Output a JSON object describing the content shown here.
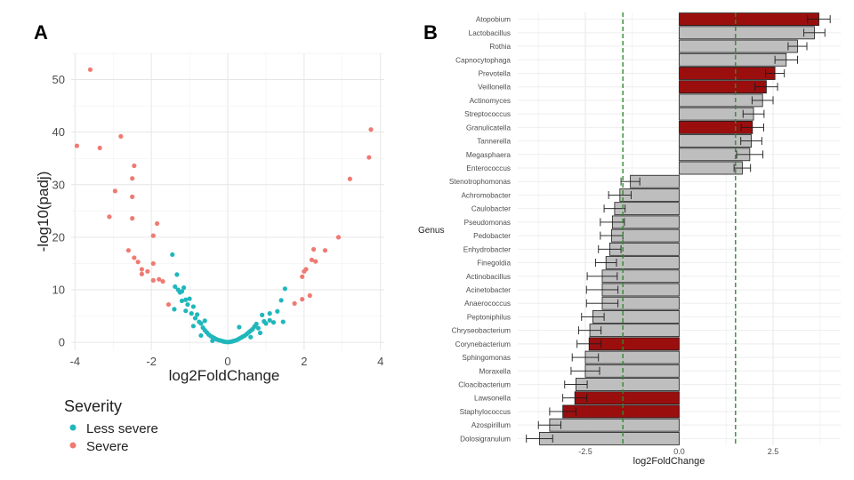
{
  "panels": {
    "a": "A",
    "b": "B"
  },
  "chart_data": [
    {
      "type": "scatter",
      "title": "",
      "xlabel": "log2FoldChange",
      "ylabel": "-log10(padj)",
      "xlim": [
        -4.1,
        4.1
      ],
      "ylim": [
        -1.5,
        55
      ],
      "xticks": [
        -4,
        -2,
        0,
        2,
        4
      ],
      "yticks": [
        0,
        10,
        20,
        30,
        40,
        50
      ],
      "grid": true,
      "legend": {
        "title": "Severity",
        "position": "bottom-left"
      },
      "colors": {
        "Less severe": "#20B7BC",
        "Severe": "#F07A72"
      },
      "series": [
        {
          "name": "Less severe",
          "points": [
            [
              -1.45,
              16.7
            ],
            [
              -1.38,
              10.6
            ],
            [
              -1.33,
              12.9
            ],
            [
              -1.3,
              10.0
            ],
            [
              -1.25,
              9.5
            ],
            [
              -1.2,
              9.7
            ],
            [
              -1.15,
              10.4
            ],
            [
              -1.1,
              8.1
            ],
            [
              -1.05,
              7.2
            ],
            [
              -1.0,
              8.3
            ],
            [
              -0.95,
              5.5
            ],
            [
              -0.9,
              6.8
            ],
            [
              -0.85,
              4.6
            ],
            [
              -0.8,
              5.3
            ],
            [
              -0.75,
              3.9
            ],
            [
              -0.7,
              3.6
            ],
            [
              -0.65,
              2.8
            ],
            [
              -0.6,
              2.3
            ],
            [
              -0.55,
              1.9
            ],
            [
              -0.5,
              1.5
            ],
            [
              -0.45,
              1.2
            ],
            [
              -0.4,
              1.0
            ],
            [
              -0.35,
              0.8
            ],
            [
              -0.3,
              0.6
            ],
            [
              -0.25,
              0.45
            ],
            [
              -0.2,
              0.35
            ],
            [
              -0.15,
              0.25
            ],
            [
              -0.1,
              0.15
            ],
            [
              -0.05,
              0.08
            ],
            [
              0.0,
              0.05
            ],
            [
              0.05,
              0.08
            ],
            [
              0.1,
              0.15
            ],
            [
              0.15,
              0.25
            ],
            [
              0.2,
              0.35
            ],
            [
              0.25,
              0.5
            ],
            [
              0.3,
              0.7
            ],
            [
              0.35,
              0.9
            ],
            [
              0.4,
              1.1
            ],
            [
              0.45,
              1.3
            ],
            [
              0.5,
              1.6
            ],
            [
              0.55,
              1.9
            ],
            [
              0.6,
              2.2
            ],
            [
              0.65,
              2.5
            ],
            [
              0.7,
              3.0
            ],
            [
              0.75,
              3.5
            ],
            [
              0.8,
              2.7
            ],
            [
              0.85,
              1.8
            ],
            [
              0.9,
              5.2
            ],
            [
              0.95,
              4.0
            ],
            [
              1.0,
              3.6
            ],
            [
              1.1,
              5.5
            ],
            [
              1.2,
              3.8
            ],
            [
              1.3,
              5.9
            ],
            [
              1.4,
              8.0
            ],
            [
              1.5,
              10.2
            ],
            [
              1.45,
              3.9
            ],
            [
              1.1,
              4.2
            ],
            [
              -0.6,
              4.1
            ],
            [
              -0.9,
              3.1
            ],
            [
              -1.1,
              6.0
            ],
            [
              -1.4,
              6.3
            ],
            [
              -1.2,
              7.9
            ],
            [
              -0.7,
              1.3
            ],
            [
              -0.4,
              0.3
            ],
            [
              0.3,
              2.9
            ],
            [
              0.6,
              1.0
            ]
          ]
        },
        {
          "name": "Severe",
          "points": [
            [
              -3.6,
              51.9
            ],
            [
              -3.95,
              37.4
            ],
            [
              -3.35,
              37.0
            ],
            [
              -2.8,
              39.2
            ],
            [
              -2.45,
              33.6
            ],
            [
              -2.5,
              31.2
            ],
            [
              -2.95,
              28.8
            ],
            [
              -2.5,
              27.7
            ],
            [
              -3.1,
              23.9
            ],
            [
              -2.5,
              23.6
            ],
            [
              -1.85,
              22.6
            ],
            [
              -1.95,
              20.3
            ],
            [
              -2.6,
              17.5
            ],
            [
              -2.45,
              16.1
            ],
            [
              -2.35,
              15.3
            ],
            [
              -1.95,
              15.0
            ],
            [
              -2.25,
              13.9
            ],
            [
              -2.1,
              13.5
            ],
            [
              -2.25,
              13.0
            ],
            [
              -1.8,
              12.0
            ],
            [
              -1.95,
              11.8
            ],
            [
              -1.7,
              11.6
            ],
            [
              -1.55,
              7.2
            ],
            [
              1.75,
              7.4
            ],
            [
              1.95,
              8.2
            ],
            [
              1.95,
              12.5
            ],
            [
              2.0,
              13.5
            ],
            [
              2.05,
              13.9
            ],
            [
              2.2,
              15.7
            ],
            [
              2.25,
              17.7
            ],
            [
              2.3,
              15.4
            ],
            [
              2.55,
              17.5
            ],
            [
              2.9,
              20.0
            ],
            [
              3.2,
              31.1
            ],
            [
              3.7,
              35.2
            ],
            [
              3.75,
              40.5
            ],
            [
              2.15,
              8.9
            ]
          ]
        }
      ]
    },
    {
      "type": "bar",
      "orientation": "horizontal",
      "title": "",
      "xlabel": "log2FoldChange",
      "ylabel": "Genus",
      "xlim": [
        -4.3,
        4.3
      ],
      "xticks": [
        -2.5,
        0.0,
        2.5
      ],
      "xtick_labels": [
        "-2.5",
        "0.0",
        "2.5"
      ],
      "reference_lines": [
        -1.5,
        1.5
      ],
      "reference_line_color": "#2E8B2E",
      "colors": {
        "highlight": "#9B0E0E",
        "default": "#BEBEBE"
      },
      "grid": true,
      "bars": [
        {
          "genus": "Atopobium",
          "value": 3.72,
          "error": 0.3,
          "highlight": true
        },
        {
          "genus": "Lactobacillus",
          "value": 3.6,
          "error": 0.28,
          "highlight": false
        },
        {
          "genus": "Rothia",
          "value": 3.15,
          "error": 0.25,
          "highlight": false
        },
        {
          "genus": "Capnocytophaga",
          "value": 2.85,
          "error": 0.3,
          "highlight": false
        },
        {
          "genus": "Prevotella",
          "value": 2.55,
          "error": 0.25,
          "highlight": true
        },
        {
          "genus": "Veillonella",
          "value": 2.32,
          "error": 0.3,
          "highlight": true
        },
        {
          "genus": "Actinomyces",
          "value": 2.22,
          "error": 0.28,
          "highlight": false
        },
        {
          "genus": "Streptococcus",
          "value": 1.98,
          "error": 0.28,
          "highlight": false
        },
        {
          "genus": "Granulicatella",
          "value": 1.95,
          "error": 0.3,
          "highlight": true
        },
        {
          "genus": "Tannerella",
          "value": 1.92,
          "error": 0.28,
          "highlight": false
        },
        {
          "genus": "Megasphaera",
          "value": 1.88,
          "error": 0.35,
          "highlight": false
        },
        {
          "genus": "Enterococcus",
          "value": 1.68,
          "error": 0.22,
          "highlight": false
        },
        {
          "genus": "Stenotrophomonas",
          "value": -1.3,
          "error": 0.25,
          "highlight": false
        },
        {
          "genus": "Achromobacter",
          "value": -1.58,
          "error": 0.3,
          "highlight": false
        },
        {
          "genus": "Caulobacter",
          "value": -1.72,
          "error": 0.28,
          "highlight": false
        },
        {
          "genus": "Pseudomonas",
          "value": -1.78,
          "error": 0.32,
          "highlight": false
        },
        {
          "genus": "Pedobacter",
          "value": -1.8,
          "error": 0.3,
          "highlight": false
        },
        {
          "genus": "Enhydrobacter",
          "value": -1.85,
          "error": 0.3,
          "highlight": false
        },
        {
          "genus": "Finegoldia",
          "value": -1.95,
          "error": 0.28,
          "highlight": false
        },
        {
          "genus": "Actinobacillus",
          "value": -2.05,
          "error": 0.4,
          "highlight": false
        },
        {
          "genus": "Acinetobacter",
          "value": -2.05,
          "error": 0.42,
          "highlight": false
        },
        {
          "genus": "Anaerococcus",
          "value": -2.05,
          "error": 0.42,
          "highlight": false
        },
        {
          "genus": "Peptoniphilus",
          "value": -2.3,
          "error": 0.3,
          "highlight": false
        },
        {
          "genus": "Chryseobacterium",
          "value": -2.38,
          "error": 0.3,
          "highlight": false
        },
        {
          "genus": "Corynebacterium",
          "value": -2.4,
          "error": 0.32,
          "highlight": true
        },
        {
          "genus": "Sphingomonas",
          "value": -2.5,
          "error": 0.35,
          "highlight": false
        },
        {
          "genus": "Moraxella",
          "value": -2.5,
          "error": 0.38,
          "highlight": false
        },
        {
          "genus": "Cloacibacterium",
          "value": -2.75,
          "error": 0.3,
          "highlight": false
        },
        {
          "genus": "Lawsonella",
          "value": -2.78,
          "error": 0.32,
          "highlight": true
        },
        {
          "genus": "Staphylococcus",
          "value": -3.1,
          "error": 0.35,
          "highlight": true
        },
        {
          "genus": "Azospirillum",
          "value": -3.45,
          "error": 0.3,
          "highlight": false
        },
        {
          "genus": "Dolosigranulum",
          "value": -3.72,
          "error": 0.35,
          "highlight": false
        }
      ]
    }
  ]
}
